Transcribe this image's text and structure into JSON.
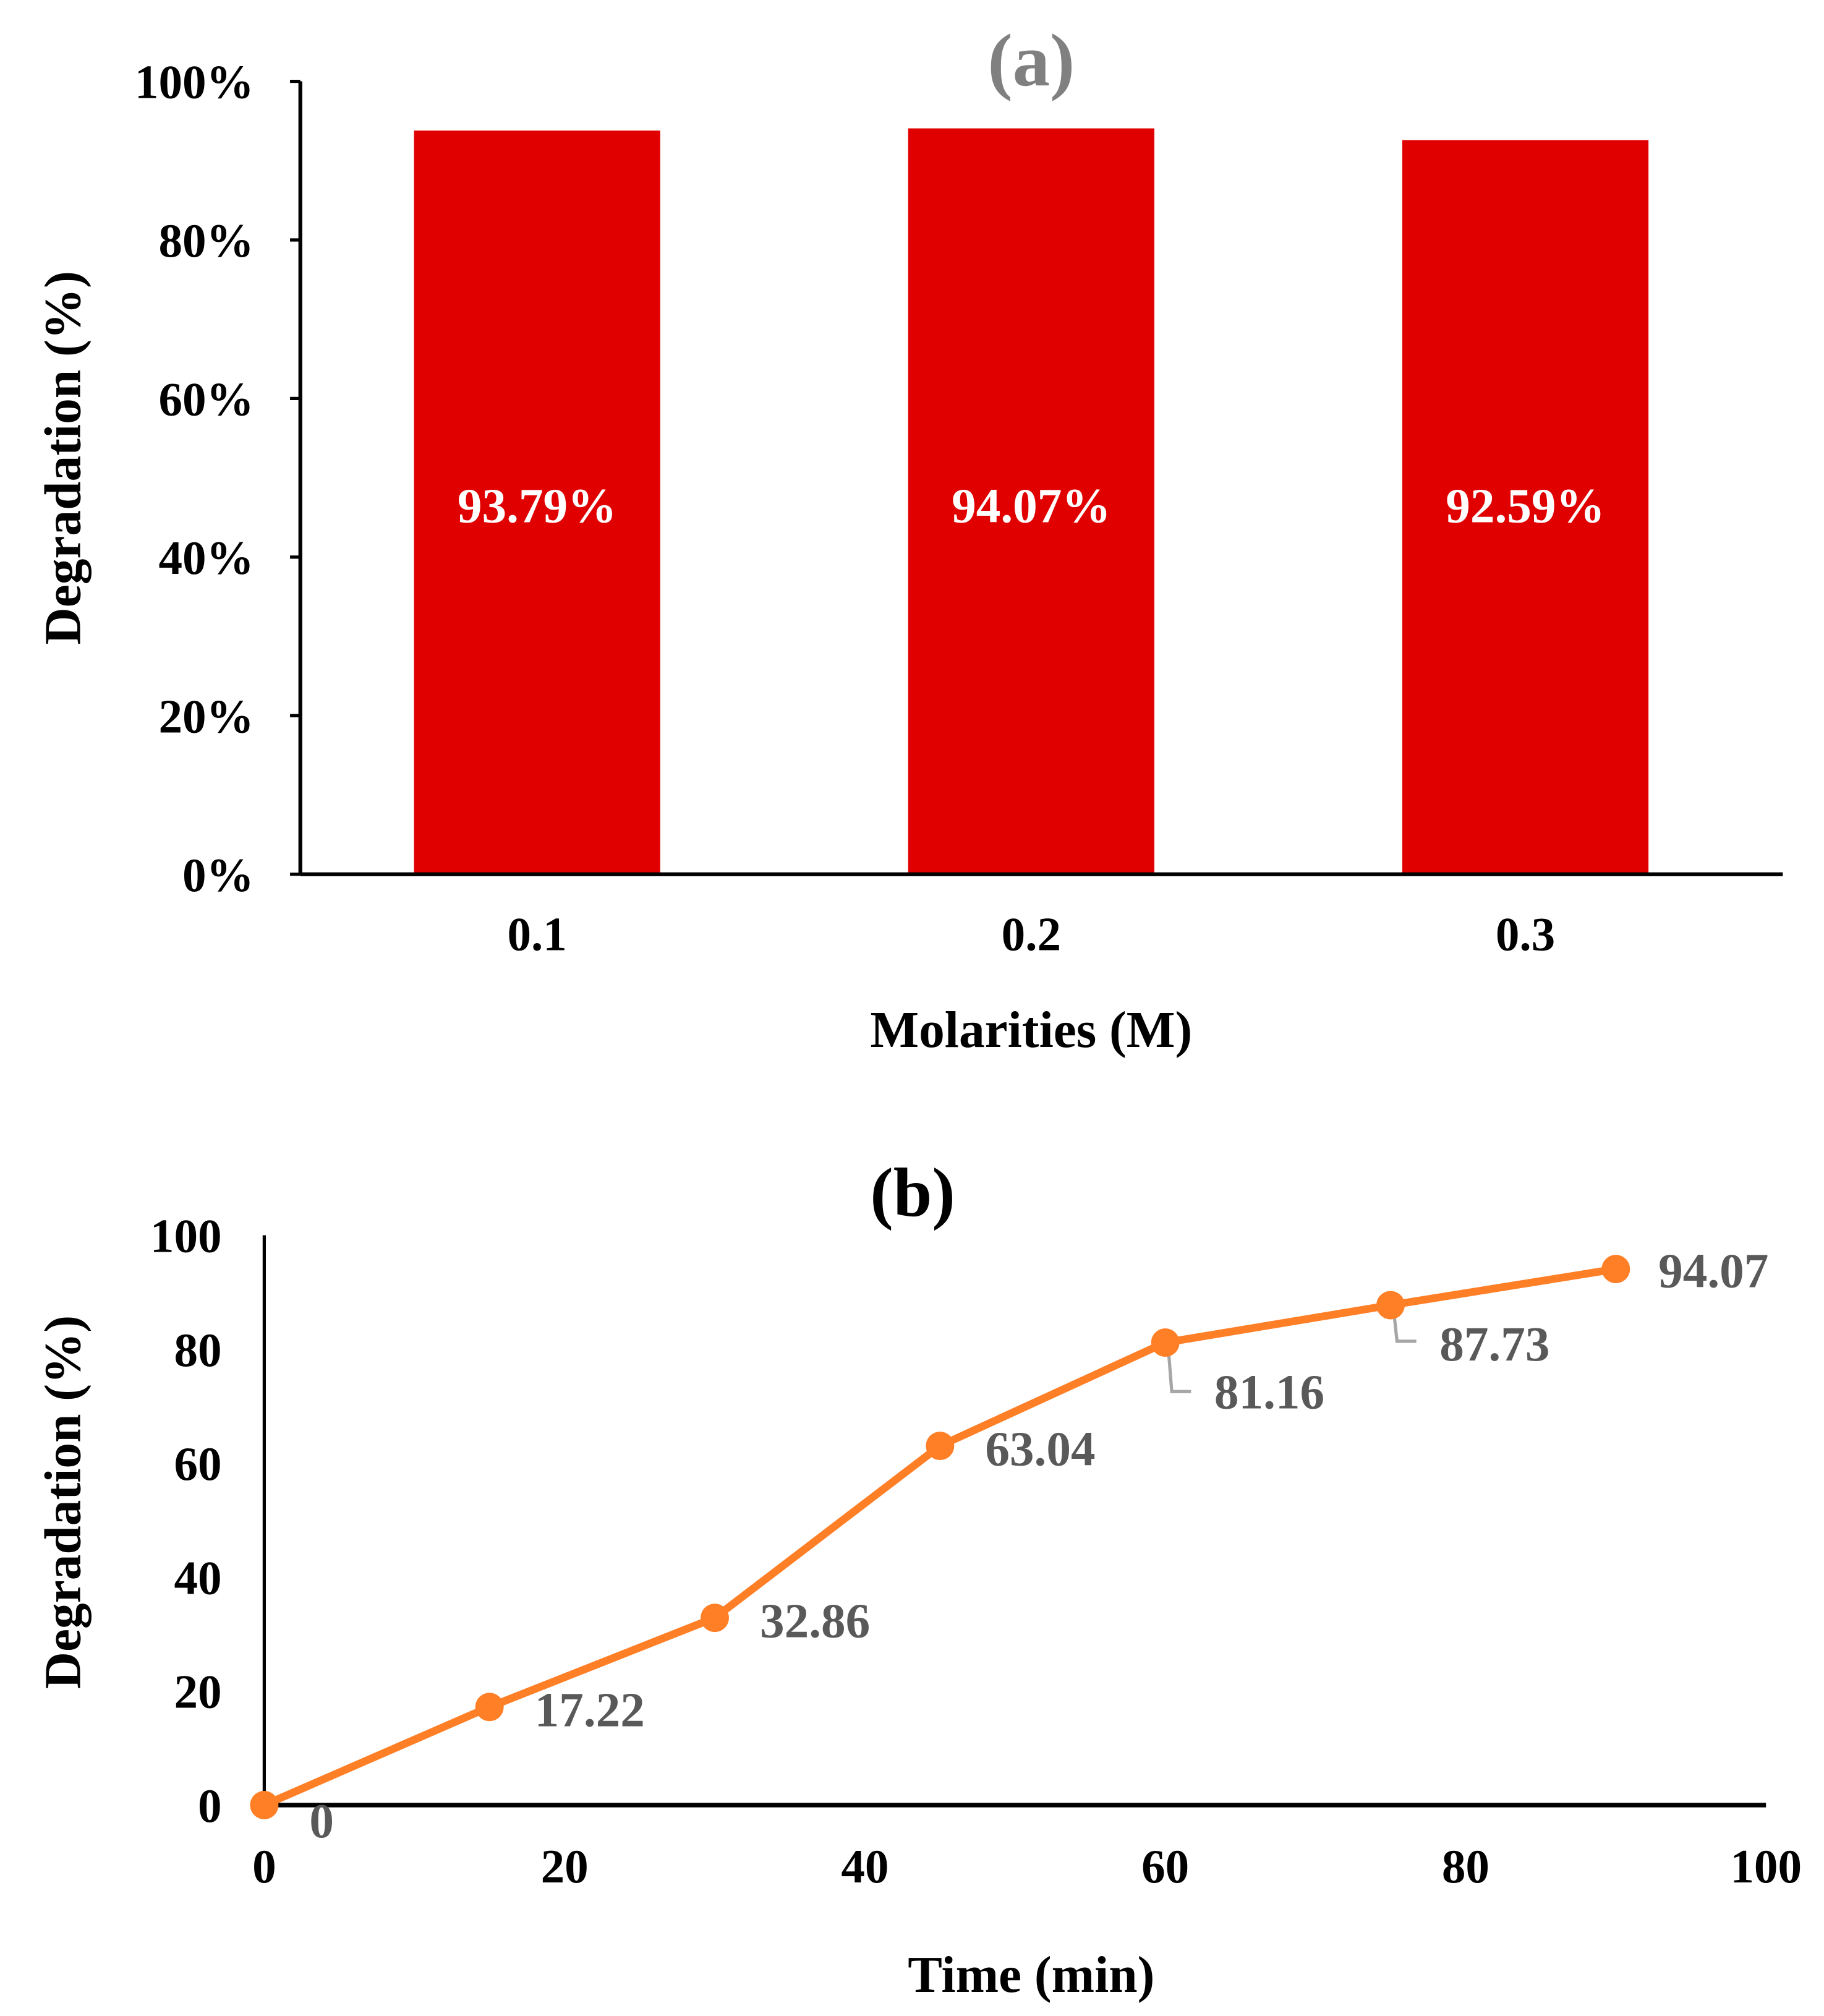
{
  "chart_data": [
    {
      "type": "bar",
      "title": "(a)",
      "xlabel": "Molarities (M)",
      "ylabel": "Degradation (%)",
      "categories": [
        "0.1",
        "0.2",
        "0.3"
      ],
      "values": [
        93.79,
        94.07,
        92.59
      ],
      "data_labels": [
        "93.79%",
        "94.07%",
        "92.59%"
      ],
      "ylim": [
        0,
        100
      ],
      "yticks": [
        0,
        20,
        40,
        60,
        80,
        100
      ],
      "ytick_labels": [
        "0%",
        "20%",
        "40%",
        "60%",
        "80%",
        "100%"
      ],
      "grid": false,
      "bar_color": "#E00000"
    },
    {
      "type": "line",
      "title": "(b)",
      "xlabel": "Time (min)",
      "ylabel": "Degradation (%)",
      "x": [
        0,
        15,
        30,
        45,
        60,
        75,
        90
      ],
      "y": [
        0,
        17.22,
        32.86,
        63.04,
        81.16,
        87.73,
        94.07
      ],
      "data_labels": [
        "0",
        "17.22",
        "32.86",
        "63.04",
        "81.16",
        "87.73",
        "94.07"
      ],
      "xlim": [
        0,
        100
      ],
      "ylim": [
        0,
        100
      ],
      "xticks": [
        0,
        20,
        40,
        60,
        80,
        100
      ],
      "xtick_labels": [
        "0",
        "20",
        "40",
        "60",
        "80",
        "100"
      ],
      "yticks": [
        0,
        20,
        40,
        60,
        80,
        100
      ],
      "ytick_labels": [
        "0",
        "20",
        "40",
        "60",
        "80",
        "100"
      ],
      "grid": false,
      "line_color": "#FF7F27",
      "label_color": "#595959"
    }
  ]
}
